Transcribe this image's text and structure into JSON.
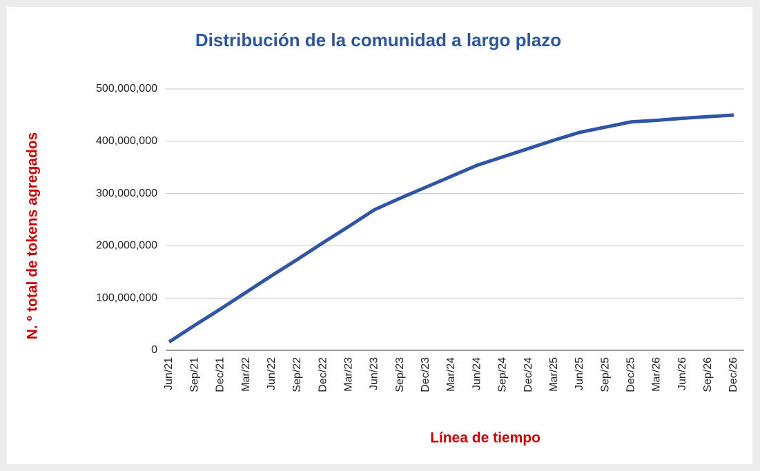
{
  "chart_data": {
    "type": "line",
    "title": "Distribución de la comunidad a largo plazo",
    "x_label": "Línea de tiempo",
    "y_label": "N. º total de tokens agregados",
    "categories": [
      "Jun/21",
      "Sep/21",
      "Dec/21",
      "Mar/22",
      "Jun/22",
      "Sep/22",
      "Dec/22",
      "Mar/23",
      "Jun/23",
      "Sep/23",
      "Dec/23",
      "Mar/24",
      "Jun/24",
      "Sep/24",
      "Dec/24",
      "Mar/25",
      "Jun/25",
      "Sep/25",
      "Dec/25",
      "Mar/26",
      "Jun/26",
      "Sep/26",
      "Dec/26"
    ],
    "series": [
      {
        "name": "Tokens",
        "color": "#2f55a4",
        "values": [
          16000000,
          48000000,
          79000000,
          111000000,
          143000000,
          174000000,
          206000000,
          237000000,
          269000000,
          291000000,
          312000000,
          333000000,
          354000000,
          370000000,
          386000000,
          402000000,
          417000000,
          427000000,
          437000000,
          440000000,
          444000000,
          447000000,
          450000000
        ]
      }
    ],
    "ylim": [
      0,
      500000000
    ],
    "yticks": [
      0,
      {
        "value": 100000000,
        "label": "100,000,000"
      },
      {
        "value": 200000000,
        "label": "200,000,000"
      },
      {
        "value": 300000000,
        "label": "300,000,000"
      },
      {
        "value": 400000000,
        "label": "400,000,000"
      },
      {
        "value": 500000000,
        "label": "500,000,000"
      }
    ],
    "grid": true
  }
}
